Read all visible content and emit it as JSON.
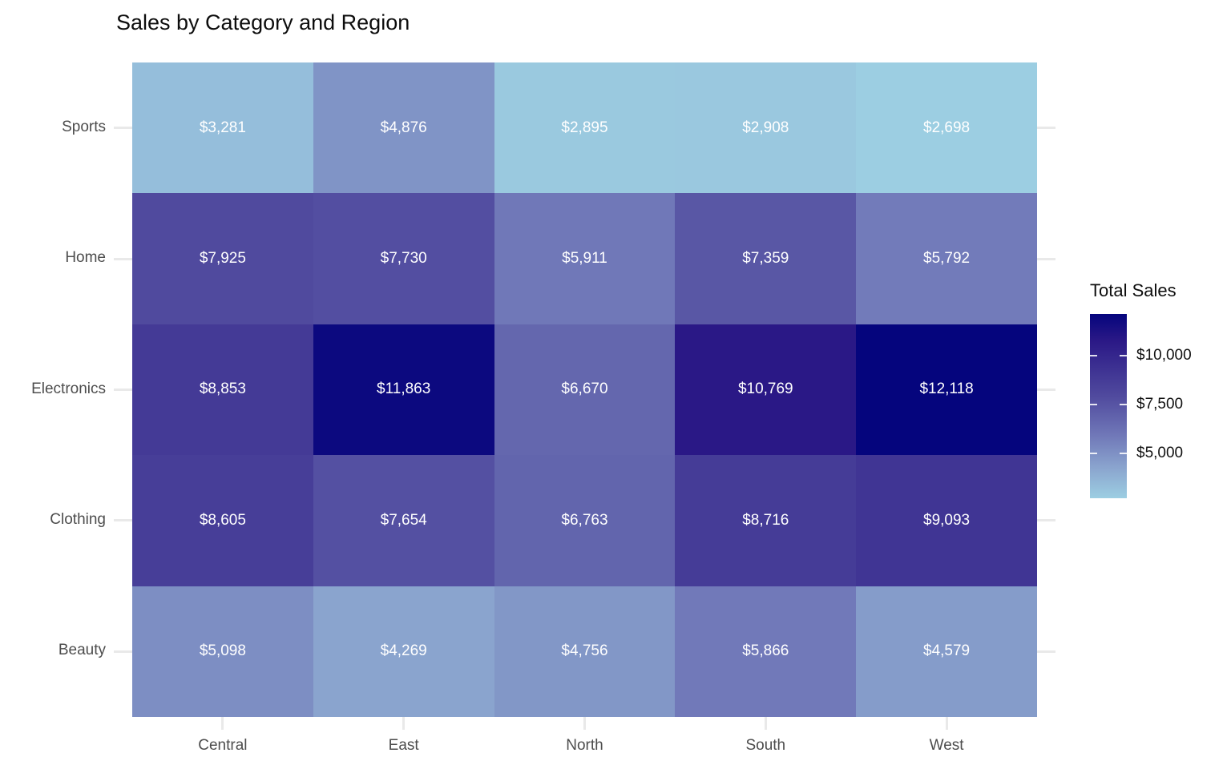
{
  "chart_data": {
    "type": "heatmap",
    "title": "Sales by Category and Region",
    "x_categories": [
      "Central",
      "East",
      "North",
      "South",
      "West"
    ],
    "y_categories": [
      "Sports",
      "Home",
      "Electronics",
      "Clothing",
      "Beauty"
    ],
    "values": [
      [
        3281,
        4876,
        2895,
        2908,
        2698
      ],
      [
        7925,
        7730,
        5911,
        7359,
        5792
      ],
      [
        8853,
        11863,
        6670,
        10769,
        12118
      ],
      [
        8605,
        7654,
        6763,
        8716,
        9093
      ],
      [
        5098,
        4269,
        4756,
        5866,
        4579
      ]
    ],
    "labels": [
      [
        "$3,281",
        "$4,876",
        "$2,895",
        "$2,908",
        "$2,698"
      ],
      [
        "$7,925",
        "$7,730",
        "$5,911",
        "$7,359",
        "$5,792"
      ],
      [
        "$8,853",
        "$11,863",
        "$6,670",
        "$10,769",
        "$12,118"
      ],
      [
        "$8,605",
        "$7,654",
        "$6,763",
        "$8,716",
        "$9,093"
      ],
      [
        "$5,098",
        "$4,269",
        "$4,756",
        "$5,866",
        "$4,579"
      ]
    ],
    "value_min": 2698,
    "value_max": 12118,
    "legend": {
      "title": "Total Sales",
      "ticks": [
        {
          "value": 10000,
          "label": "$10,000"
        },
        {
          "value": 7500,
          "label": "$7,500"
        },
        {
          "value": 5000,
          "label": "$5,000"
        }
      ]
    },
    "grid": true,
    "legend_position": "right",
    "colors": {
      "scale_anchors": [
        {
          "t": 0.0,
          "color": "#9CCEE2"
        },
        {
          "t": 0.167,
          "color": "#8AA4CE"
        },
        {
          "t": 0.341,
          "color": "#7078B8"
        },
        {
          "t": 0.555,
          "color": "#504A9E"
        },
        {
          "t": 0.857,
          "color": "#2A1886"
        },
        {
          "t": 1.0,
          "color": "#05057D"
        }
      ],
      "cell_text": "#FFFFFF",
      "axis_text": "#4D4D4D",
      "title_text": "#0D0D0D",
      "legend_text": "#111111",
      "gridline": "#E9E9E9"
    }
  }
}
